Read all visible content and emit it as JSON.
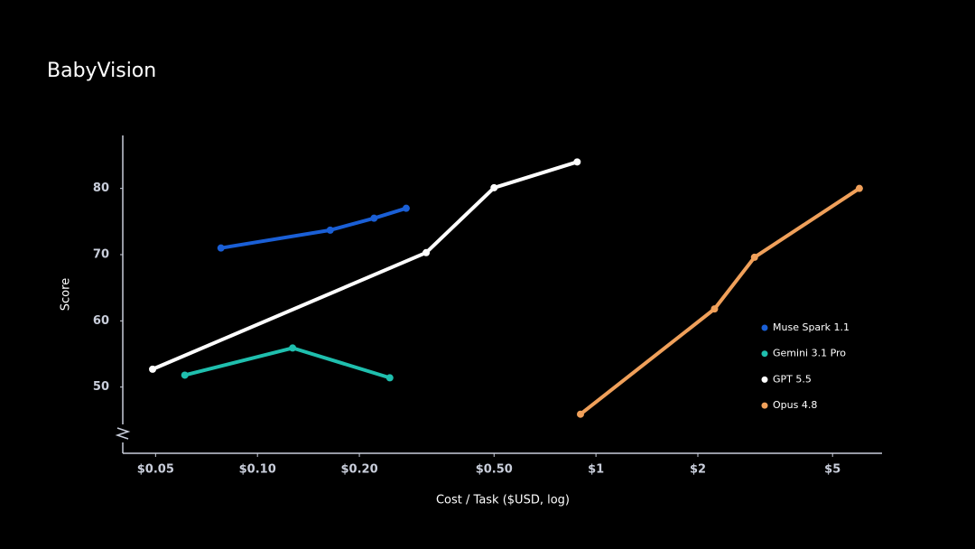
{
  "chart_data": {
    "type": "line",
    "title": "BabyVision",
    "x_label": "Cost / Task ($USD, log)",
    "y_label": "Score",
    "xscale": "log",
    "xlim": [
      0.04,
      7
    ],
    "ylim": [
      40,
      88
    ],
    "xticks": [
      {
        "value": 0.05,
        "label": "$0.05"
      },
      {
        "value": 0.1,
        "label": "$0.10"
      },
      {
        "value": 0.2,
        "label": "$0.20"
      },
      {
        "value": 0.5,
        "label": "$0.50"
      },
      {
        "value": 1,
        "label": "$1"
      },
      {
        "value": 2,
        "label": "$2"
      },
      {
        "value": 5,
        "label": "$5"
      }
    ],
    "yticks": [
      50,
      60,
      70,
      80
    ],
    "series": [
      {
        "name": "Muse Spark 1.1",
        "color": "#1a5fd6",
        "x": [
          0.078,
          0.164,
          0.221,
          0.275
        ],
        "values": [
          71.0,
          73.7,
          75.5,
          77.0
        ]
      },
      {
        "name": "Gemini 3.1 Pro",
        "color": "#1fbfae",
        "x": [
          0.061,
          0.127,
          0.246
        ],
        "values": [
          51.8,
          55.9,
          51.4
        ]
      },
      {
        "name": "GPT 5.5",
        "color": "#ffffff",
        "x": [
          0.049,
          0.315,
          0.5,
          0.88
        ],
        "values": [
          52.7,
          70.3,
          80.1,
          84.0
        ]
      },
      {
        "name": "Opus 4.8",
        "color": "#f0a05a",
        "x": [
          0.9,
          2.24,
          2.94,
          6.0
        ],
        "values": [
          45.9,
          61.8,
          69.6,
          80.0
        ]
      }
    ]
  }
}
